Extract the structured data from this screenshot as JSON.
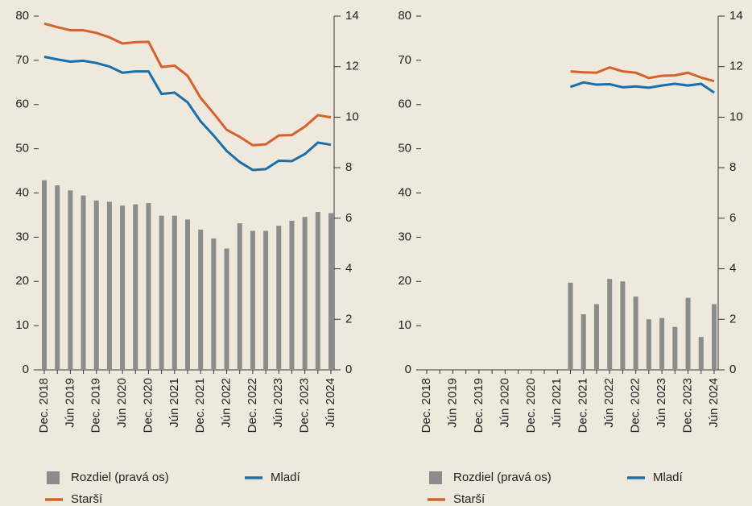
{
  "chart_data": [
    {
      "type": "combo",
      "categories": [
        "Dec. 2018",
        null,
        "Jún 2019",
        null,
        "Dec. 2019",
        null,
        "Jún 2020",
        null,
        "Dec. 2020",
        null,
        "Jún 2021",
        null,
        "Dec. 2021",
        null,
        "Jún 2022",
        null,
        "Dec. 2022",
        null,
        "Jún 2023",
        null,
        "Dec. 2023",
        null,
        "Jún 2024"
      ],
      "ylim": [
        0,
        80
      ],
      "yticks": [
        0,
        10,
        20,
        30,
        40,
        50,
        60,
        70,
        80
      ],
      "y2lim": [
        0,
        14
      ],
      "y2ticks": [
        0,
        2,
        4,
        6,
        8,
        10,
        12,
        14
      ],
      "series": [
        {
          "name": "Rozdiel (pravá os)",
          "mark": "bar",
          "axis": "y2",
          "color": "#8c8c8c",
          "values": [
            7.5,
            7.3,
            7.1,
            6.9,
            6.7,
            6.65,
            6.5,
            6.55,
            6.6,
            6.1,
            6.1,
            5.95,
            5.55,
            5.2,
            4.8,
            5.8,
            5.5,
            5.5,
            5.7,
            5.9,
            6.05,
            6.25,
            6.2
          ]
        },
        {
          "name": "Mladí",
          "mark": "line",
          "color": "#1a6faa",
          "values": [
            70.8,
            70.2,
            69.7,
            69.9,
            69.4,
            68.6,
            67.2,
            67.5,
            67.5,
            62.4,
            62.7,
            60.5,
            56.2,
            53,
            49.5,
            47,
            45.2,
            45.4,
            47.3,
            47.2,
            48.8,
            51.4,
            50.9
          ]
        },
        {
          "name": "Starší",
          "mark": "line",
          "color": "#d4622a",
          "values": [
            78.3,
            77.5,
            76.8,
            76.8,
            76.2,
            75.2,
            73.8,
            74.1,
            74.2,
            68.5,
            68.8,
            66.5,
            61.5,
            58,
            54.3,
            52.7,
            50.8,
            51,
            53,
            53.1,
            55,
            57.6,
            57.1
          ]
        }
      ]
    },
    {
      "type": "combo",
      "categories": [
        "Dec. 2018",
        null,
        "Jún 2019",
        null,
        "Dec. 2019",
        null,
        "Jún 2020",
        null,
        "Dec. 2020",
        null,
        "Jún 2021",
        null,
        "Dec. 2021",
        null,
        "Jún 2022",
        null,
        "Dec. 2022",
        null,
        "Jún 2023",
        null,
        "Dec. 2023",
        null,
        "Jún 2024"
      ],
      "ylim": [
        0,
        80
      ],
      "yticks": [
        0,
        10,
        20,
        30,
        40,
        50,
        60,
        70,
        80
      ],
      "y2lim": [
        0,
        14
      ],
      "y2ticks": [
        0,
        2,
        4,
        6,
        8,
        10,
        12,
        14
      ],
      "series": [
        {
          "name": "Rozdiel (pravá os)",
          "mark": "bar",
          "axis": "y2",
          "color": "#8c8c8c",
          "values": [
            null,
            null,
            null,
            null,
            null,
            null,
            null,
            null,
            null,
            null,
            null,
            3.45,
            2.2,
            2.6,
            3.6,
            3.5,
            2.9,
            2.0,
            2.05,
            1.7,
            2.85,
            1.3,
            2.6
          ]
        },
        {
          "name": "Mladí",
          "mark": "line",
          "color": "#1a6faa",
          "values": [
            null,
            null,
            null,
            null,
            null,
            null,
            null,
            null,
            null,
            null,
            null,
            64,
            65,
            64.5,
            64.6,
            63.9,
            64.1,
            63.8,
            64.3,
            64.7,
            64.3,
            64.7,
            62.7
          ]
        },
        {
          "name": "Starší",
          "mark": "line",
          "color": "#d4622a",
          "values": [
            null,
            null,
            null,
            null,
            null,
            null,
            null,
            null,
            null,
            null,
            null,
            67.5,
            67.3,
            67.2,
            68.4,
            67.5,
            67.2,
            66,
            66.5,
            66.6,
            67.2,
            66.1,
            65.3
          ]
        }
      ]
    }
  ]
}
